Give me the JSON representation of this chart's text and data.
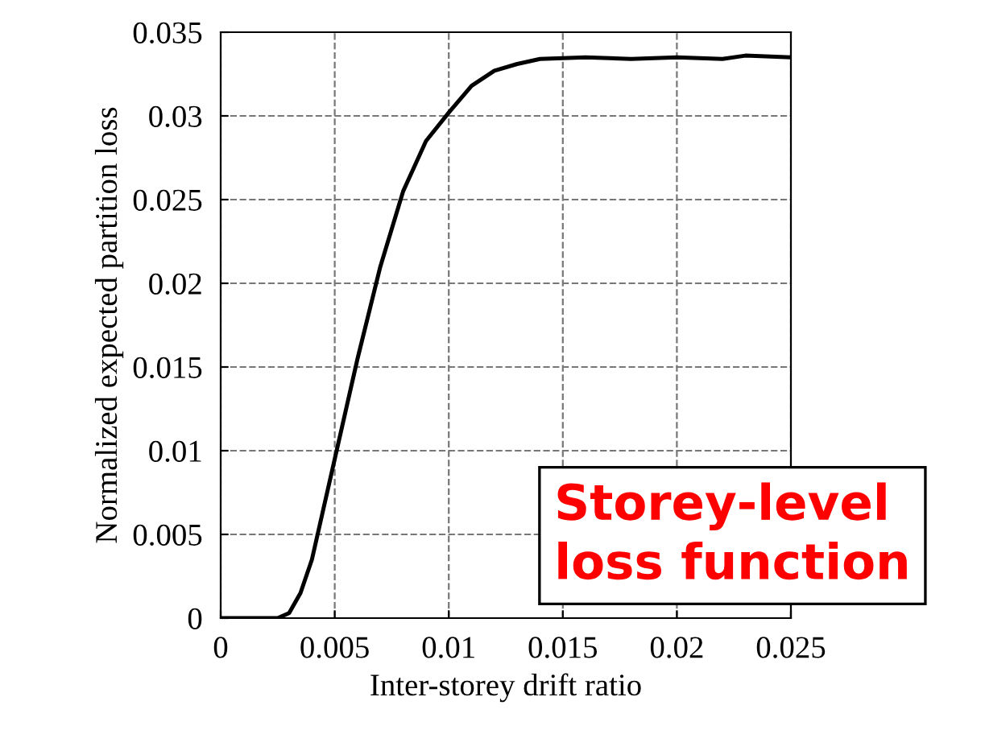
{
  "chart_data": {
    "type": "line",
    "xlabel": "Inter-storey drift ratio",
    "ylabel": "Normalized expected partition loss",
    "x": [
      0,
      0.0025,
      0.003,
      0.0035,
      0.004,
      0.0045,
      0.005,
      0.006,
      0.007,
      0.008,
      0.009,
      0.01,
      0.011,
      0.012,
      0.013,
      0.014,
      0.016,
      0.018,
      0.02,
      0.022,
      0.023,
      0.025
    ],
    "series": [
      {
        "color": "#000000",
        "values": [
          0,
          0,
          0.0003,
          0.0015,
          0.0035,
          0.0065,
          0.0095,
          0.0155,
          0.021,
          0.0255,
          0.0285,
          0.0302,
          0.0318,
          0.0327,
          0.0331,
          0.0334,
          0.0335,
          0.0334,
          0.0335,
          0.0334,
          0.0336,
          0.0335
        ]
      }
    ],
    "xlim": [
      0,
      0.025
    ],
    "xticks": [
      0,
      0.005,
      0.01,
      0.015,
      0.02,
      0.025
    ],
    "ylim": [
      0,
      0.035
    ],
    "yticks": [
      0,
      0.005,
      0.01,
      0.015,
      0.02,
      0.025,
      0.03,
      0.035
    ],
    "grid": true,
    "line_style": "solid",
    "marker": "none",
    "annotations": [
      "Storey-level\nloss function"
    ]
  }
}
